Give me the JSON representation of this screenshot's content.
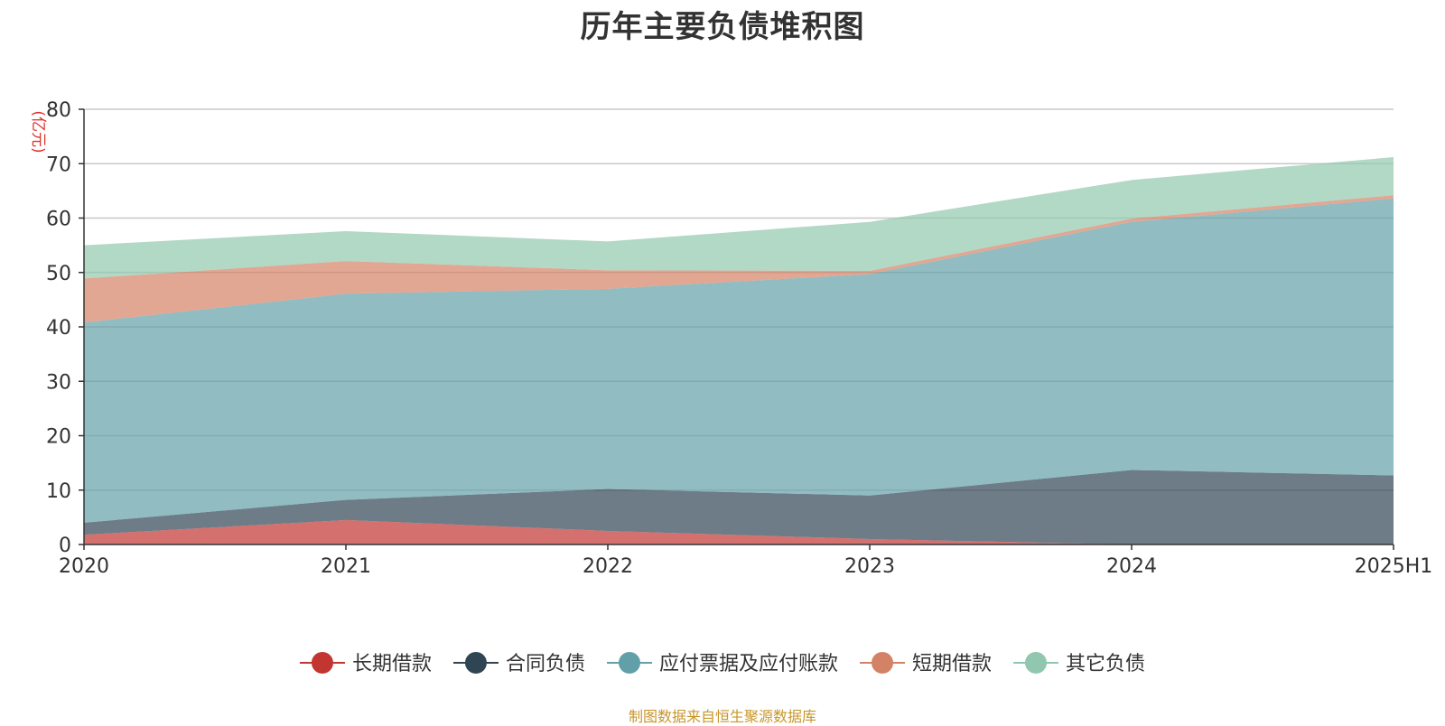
{
  "chart_data": {
    "type": "area",
    "stacked": true,
    "title": "历年主要负债堆积图",
    "ylabel": "(亿元)",
    "xlabel": "",
    "categories": [
      "2020",
      "2021",
      "2022",
      "2023",
      "2024",
      "2025H1"
    ],
    "ylim": [
      0,
      80
    ],
    "yticks": [
      0,
      10,
      20,
      30,
      40,
      50,
      60,
      70,
      80
    ],
    "grid": true,
    "legend_position": "bottom",
    "series": [
      {
        "name": "长期借款",
        "color": "#c23531",
        "values": [
          1.8,
          4.5,
          2.5,
          1.0,
          0.0,
          0.0
        ]
      },
      {
        "name": "合同负债",
        "color": "#2f4554",
        "values": [
          2.2,
          3.7,
          7.7,
          8.0,
          13.7,
          12.7
        ]
      },
      {
        "name": "应付票据及应付账款",
        "color": "#61a0a8",
        "values": [
          36.8,
          37.9,
          36.8,
          40.7,
          45.6,
          50.9
        ]
      },
      {
        "name": "短期借款",
        "color": "#d48265",
        "values": [
          8.1,
          6.0,
          3.4,
          0.6,
          0.6,
          0.6
        ]
      },
      {
        "name": "其它负债",
        "color": "#91c7ae",
        "values": [
          6.1,
          5.5,
          5.3,
          9.0,
          7.1,
          7.0
        ]
      }
    ]
  },
  "source_note": "制图数据来自恒生聚源数据库"
}
